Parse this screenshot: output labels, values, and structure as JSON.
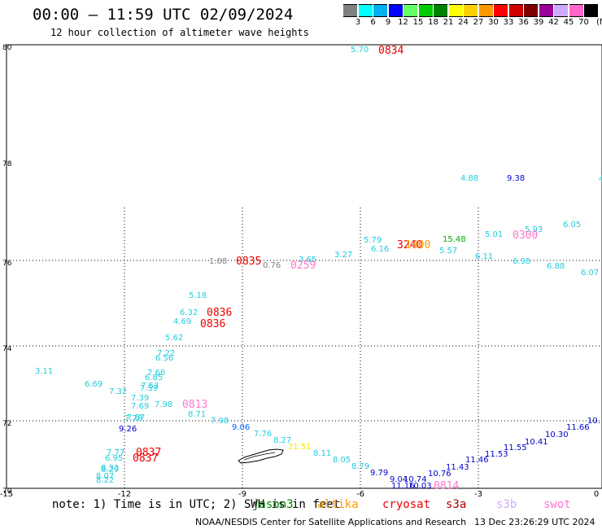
{
  "header": {
    "title": "00:00 – 11:59 UTC 02/09/2024",
    "subtitle": "12 hour collection of altimeter wave heights"
  },
  "legend": {
    "unit": "(ft)",
    "items": [
      {
        "label": "3",
        "color": "#808080"
      },
      {
        "label": "6",
        "color": "#00ffff"
      },
      {
        "label": "9",
        "color": "#00b0f0"
      },
      {
        "label": "12",
        "color": "#0000ff"
      },
      {
        "label": "15",
        "color": "#66ff66"
      },
      {
        "label": "18",
        "color": "#00cc00"
      },
      {
        "label": "21",
        "color": "#008000"
      },
      {
        "label": "24",
        "color": "#ffff00"
      },
      {
        "label": "27",
        "color": "#ffd000"
      },
      {
        "label": "30",
        "color": "#ff9900"
      },
      {
        "label": "33",
        "color": "#ff0000"
      },
      {
        "label": "36",
        "color": "#cc0000"
      },
      {
        "label": "39",
        "color": "#800000"
      },
      {
        "label": "42",
        "color": "#990099"
      },
      {
        "label": "45",
        "color": "#ccaaff"
      },
      {
        "label": "70",
        "color": "#ff66cc"
      },
      {
        "label": "",
        "color": "#000000"
      }
    ]
  },
  "axes": {
    "x_ticks": [
      "-15",
      "-12",
      "-9",
      "-6",
      "-3",
      "0"
    ],
    "y_ticks": [
      "80",
      "78",
      "76",
      "74",
      "72",
      "70"
    ],
    "y_range": [
      70,
      80
    ]
  },
  "wave_labels": [
    {
      "text": "5.70",
      "color": "#22ccdd"
    },
    {
      "text": "4.88",
      "color": "#22ccdd"
    },
    {
      "text": "9.38",
      "color": "#0000cc"
    },
    {
      "text": "6.05",
      "color": "#22ccdd"
    },
    {
      "text": "5.93",
      "color": "#22ccdd"
    },
    {
      "text": "5.01",
      "color": "#22ccdd"
    },
    {
      "text": "15.48",
      "color": "#00aa00"
    },
    {
      "text": "5.79",
      "color": "#22ccdd"
    },
    {
      "text": "6.16",
      "color": "#22ccdd"
    },
    {
      "text": "5.57",
      "color": "#22ccdd"
    },
    {
      "text": "6.11",
      "color": "#22ccdd"
    },
    {
      "text": "6.98",
      "color": "#22ccdd"
    },
    {
      "text": "6.88",
      "color": "#22ccdd"
    },
    {
      "text": "6.07",
      "color": "#22ccdd"
    },
    {
      "text": "1.08",
      "color": "#808080"
    },
    {
      "text": "0.76",
      "color": "#808080"
    },
    {
      "text": "3.65",
      "color": "#22ccdd"
    },
    {
      "text": "3.27",
      "color": "#22ccdd"
    },
    {
      "text": "5.18",
      "color": "#22ccdd"
    },
    {
      "text": "6.32",
      "color": "#22ccdd"
    },
    {
      "text": "4.69",
      "color": "#22ccdd"
    },
    {
      "text": "5.62",
      "color": "#22ccdd"
    },
    {
      "text": "7.22",
      "color": "#22ccdd"
    },
    {
      "text": "6.56",
      "color": "#22ccdd"
    },
    {
      "text": "3.11",
      "color": "#22ccdd"
    },
    {
      "text": "7.66",
      "color": "#22ccdd"
    },
    {
      "text": "6.85",
      "color": "#22ccdd"
    },
    {
      "text": "6.69",
      "color": "#22ccdd"
    },
    {
      "text": "7.53",
      "color": "#22ccdd"
    },
    {
      "text": "7.32",
      "color": "#22ccdd"
    },
    {
      "text": "7.59",
      "color": "#22ccdd"
    },
    {
      "text": "7.39",
      "color": "#22ccdd"
    },
    {
      "text": "7.69",
      "color": "#22ccdd"
    },
    {
      "text": "7.98",
      "color": "#22ccdd"
    },
    {
      "text": "7.87",
      "color": "#22ccdd"
    },
    {
      "text": "7.78",
      "color": "#22ccdd"
    },
    {
      "text": "8.71",
      "color": "#22ccdd"
    },
    {
      "text": "7.98",
      "color": "#22ccdd"
    },
    {
      "text": "9.06",
      "color": "#0066ff"
    },
    {
      "text": "9.26",
      "color": "#0000cc"
    },
    {
      "text": "7.76",
      "color": "#22ccdd"
    },
    {
      "text": "8.27",
      "color": "#22ccdd"
    },
    {
      "text": "21.51",
      "color": "#eeee00"
    },
    {
      "text": "8.11",
      "color": "#22ccdd"
    },
    {
      "text": "8.05",
      "color": "#22ccdd"
    },
    {
      "text": "8.79",
      "color": "#22ccdd"
    },
    {
      "text": "9.79",
      "color": "#0000cc"
    },
    {
      "text": "9.04",
      "color": "#0000cc"
    },
    {
      "text": "10.74",
      "color": "#0000cc"
    },
    {
      "text": "11.16",
      "color": "#0000cc"
    },
    {
      "text": "10.03",
      "color": "#0000cc"
    },
    {
      "text": "10.76",
      "color": "#0000cc"
    },
    {
      "text": "11.43",
      "color": "#0000cc"
    },
    {
      "text": "11.46",
      "color": "#0000cc"
    },
    {
      "text": "11.53",
      "color": "#0000cc"
    },
    {
      "text": "11.55",
      "color": "#0000cc"
    },
    {
      "text": "10.41",
      "color": "#0000cc"
    },
    {
      "text": "10.30",
      "color": "#0000cc"
    },
    {
      "text": "11.66",
      "color": "#0000cc"
    },
    {
      "text": "10.",
      "color": "#0000cc"
    },
    {
      "text": "7.77",
      "color": "#22ccdd"
    },
    {
      "text": "6.95",
      "color": "#22ccdd"
    },
    {
      "text": "8.33",
      "color": "#22ccdd"
    },
    {
      "text": "8.29",
      "color": "#22ccdd"
    },
    {
      "text": "8.07",
      "color": "#22ccdd"
    },
    {
      "text": "8.22",
      "color": "#22ccdd"
    },
    {
      "text": "4.",
      "color": "#22ccdd"
    }
  ],
  "time_labels": [
    {
      "text": "0834",
      "color": "#ee0000"
    },
    {
      "text": "0835",
      "color": "#ee0000"
    },
    {
      "text": "0259",
      "color": "#ff77cc"
    },
    {
      "text": "3240",
      "color": "#ee0000"
    },
    {
      "text": "1400",
      "color": "#ff9900"
    },
    {
      "text": "0300",
      "color": "#ff77cc"
    },
    {
      "text": "0836",
      "color": "#ee0000"
    },
    {
      "text": "0836",
      "color": "#ee0000"
    },
    {
      "text": "0813",
      "color": "#ff77cc"
    },
    {
      "text": "0837",
      "color": "#ee0000"
    },
    {
      "text": "0837",
      "color": "#ee0000"
    },
    {
      "text": "0814",
      "color": "#ff77cc"
    }
  ],
  "footer": {
    "note": "note: 1) Time is in UTC; 2) SWH is in feet",
    "satellites": [
      {
        "name": "jason3",
        "color": "#008000"
      },
      {
        "name": "altika",
        "color": "#ff9900"
      },
      {
        "name": "cryosat",
        "color": "#ee0000"
      },
      {
        "name": "s3a",
        "color": "#aa0000"
      },
      {
        "name": "s3b",
        "color": "#ccaaff"
      },
      {
        "name": "swot",
        "color": "#ff77cc"
      }
    ],
    "credit": "NOAA/NESDIS Center for Satellite Applications and Research",
    "timestamp": "13 Dec 23:26:29 UTC 2024"
  }
}
